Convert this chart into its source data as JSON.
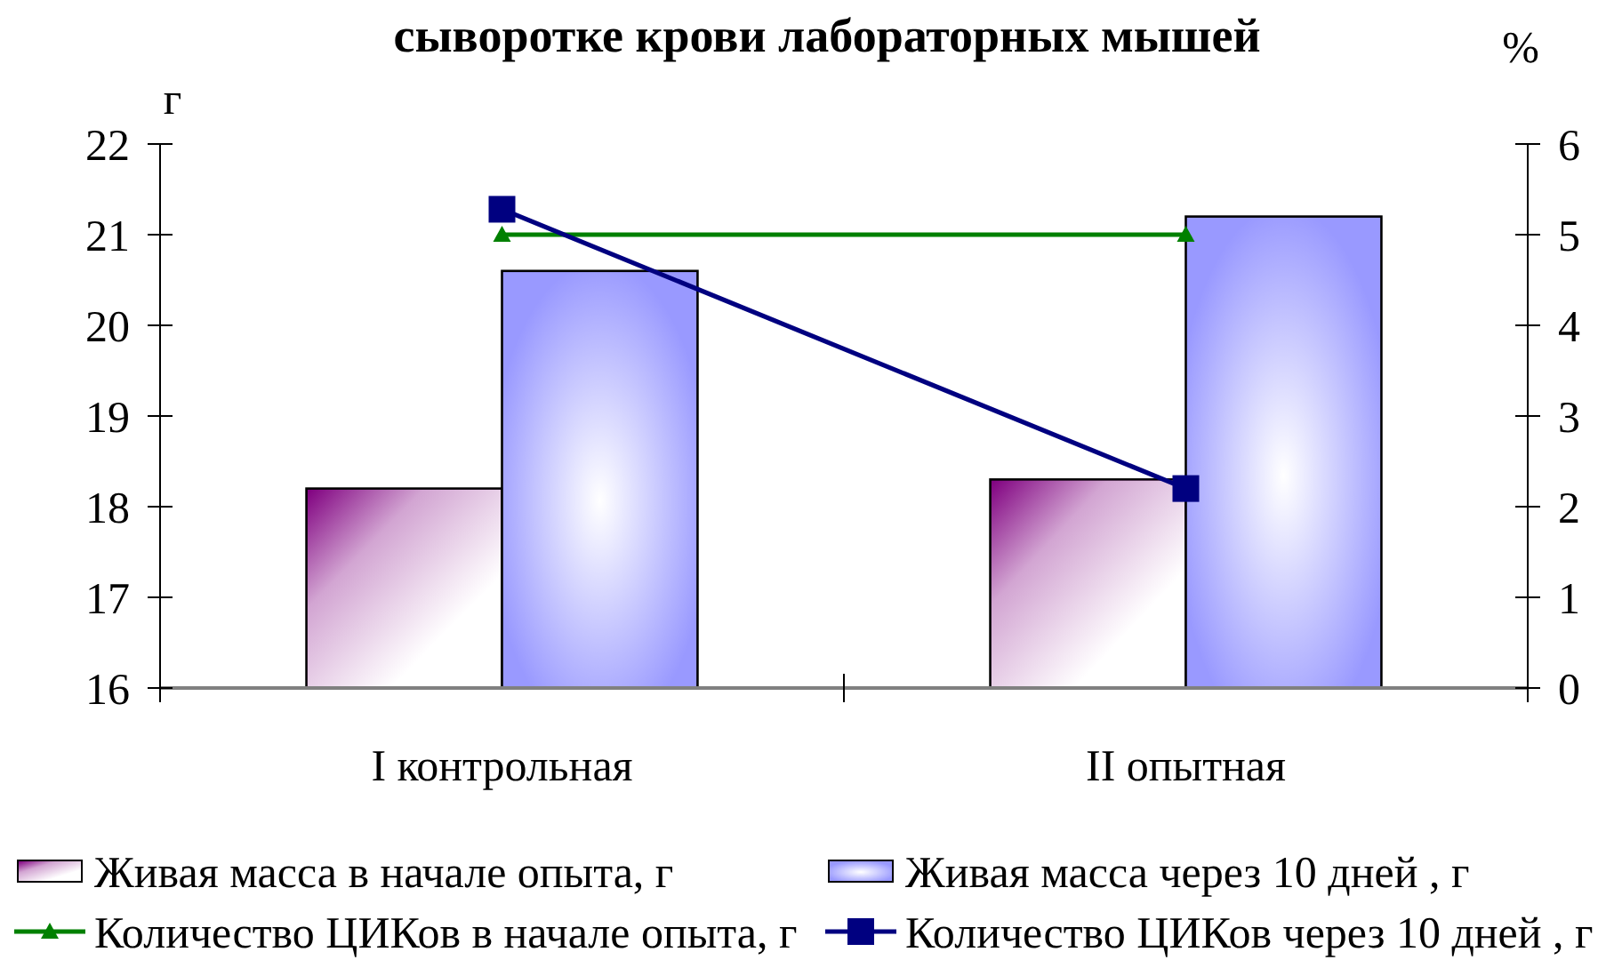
{
  "chart_data": {
    "type": "bar",
    "title": "сыворотке крови лабораторных мышей",
    "ylabel": "г",
    "y2label": "%",
    "categories": [
      "I контрольная",
      "II опытная"
    ],
    "series": [
      {
        "name": "Живая масса в начале опыта, г",
        "type": "bar",
        "color": "#800080",
        "values": [
          18.2,
          18.3
        ]
      },
      {
        "name": "Живая масса через 10 дней , г",
        "type": "bar",
        "color": "#9999ff",
        "values": [
          20.6,
          21.2
        ]
      },
      {
        "name": "Количество ЦИКов в начале опыта, г",
        "type": "line",
        "axis": "y2",
        "color": "#008000",
        "marker": "triangle",
        "values": [
          5,
          5
        ]
      },
      {
        "name": "Количество ЦИКов через 10 дней , г",
        "type": "line",
        "axis": "y2",
        "color": "#000080",
        "marker": "square",
        "values": [
          5.28,
          2.2
        ]
      }
    ],
    "ylim": [
      16,
      22
    ],
    "yticks": [
      16,
      17,
      18,
      19,
      20,
      21,
      22
    ],
    "y2lim": [
      0,
      6
    ],
    "y2ticks": [
      0,
      1,
      2,
      3,
      4,
      5,
      6
    ],
    "legend": "bottom"
  }
}
